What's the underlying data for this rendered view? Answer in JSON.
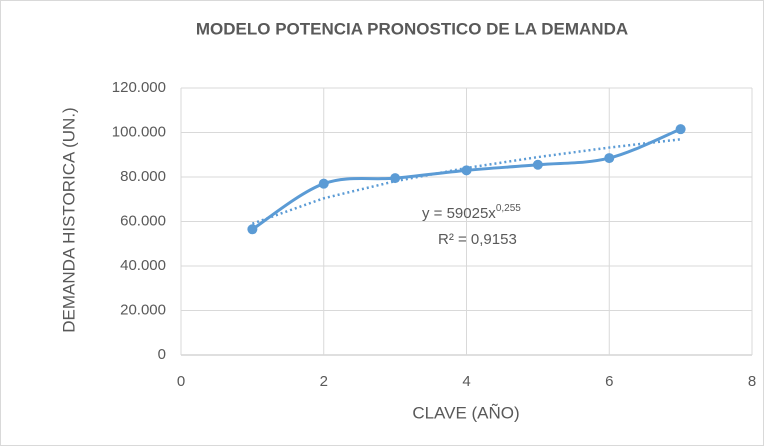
{
  "chart_data": {
    "type": "scatter",
    "title": "MODELO POTENCIA PRONOSTICO DE LA DEMANDA",
    "x_label": "CLAVE (AÑO)",
    "y_label": "DEMANDA HISTORICA (UN.)",
    "x": [
      1,
      2,
      3,
      4,
      5,
      6,
      7
    ],
    "series": [
      {
        "color": "#5b9bd5",
        "values": [
          56500,
          77000,
          79500,
          83000,
          85500,
          88500,
          101500
        ]
      }
    ],
    "trendline": {
      "color": "#5b9bd5",
      "values": [
        59025,
        70440,
        78110,
        84060,
        88950,
        93230,
        96940
      ]
    },
    "equation": "y = 59025x",
    "equation_exponent": "0,255",
    "r_squared": "R² = 0,9153",
    "xlim": [
      0,
      8
    ],
    "xticks": [
      0,
      2,
      4,
      6,
      8
    ],
    "ylim": [
      0,
      120000
    ],
    "yticks": [
      0,
      {
        "value": 20000,
        "label": "20.000"
      },
      {
        "value": 40000,
        "label": "40.000"
      },
      {
        "value": 60000,
        "label": "60.000"
      },
      {
        "value": 80000,
        "label": "80.000"
      },
      {
        "value": 100000,
        "label": "100.000"
      },
      {
        "value": 120000,
        "label": "120.000"
      }
    ],
    "grid": true,
    "smooth": true
  }
}
